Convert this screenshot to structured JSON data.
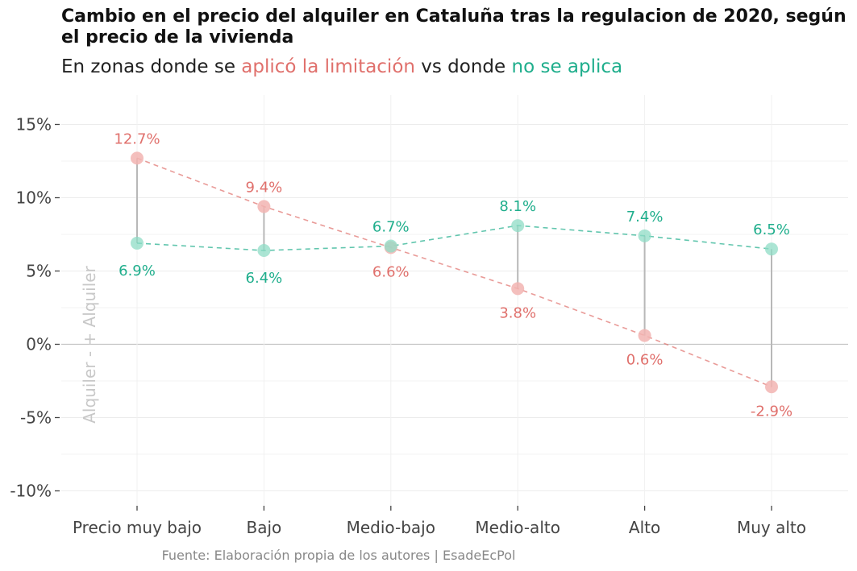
{
  "title": "Cambio en el precio del alquiler en Cataluña tras la regulacion de 2020, según el precio de la vivienda",
  "subtitle": {
    "prefix": "En zonas donde se ",
    "red": "aplicó la limitación",
    "middle": " vs donde ",
    "green": "no se aplica"
  },
  "caption": "Fuente: Elaboración propia de los autores | EsadeEcPol",
  "side_label": "Alquiler -   + Alquiler",
  "colors": {
    "limited": "#e0706c",
    "not_limited": "#1fae8c"
  },
  "chart_data": {
    "type": "dumbbell",
    "categories": [
      "Precio muy bajo",
      "Bajo",
      "Medio-bajo",
      "Medio-alto",
      "Alto",
      "Muy alto"
    ],
    "series": [
      {
        "name": "aplicó la limitación",
        "values": [
          12.7,
          9.4,
          6.6,
          3.8,
          0.6,
          -2.9
        ],
        "labels": [
          "12.7%",
          "9.4%",
          "6.6%",
          "3.8%",
          "0.6%",
          "-2.9%"
        ]
      },
      {
        "name": "no se aplica",
        "values": [
          6.9,
          6.4,
          6.7,
          8.1,
          7.4,
          6.5
        ],
        "labels": [
          "6.9%",
          "6.4%",
          "6.7%",
          "8.1%",
          "7.4%",
          "6.5%"
        ]
      }
    ],
    "yticks": [
      15,
      10,
      5,
      0,
      -5,
      -10
    ],
    "ytick_labels": [
      "15%",
      "10%",
      "5%",
      "0%",
      "-5%",
      "-10%"
    ],
    "ylim": [
      -11,
      16
    ]
  }
}
